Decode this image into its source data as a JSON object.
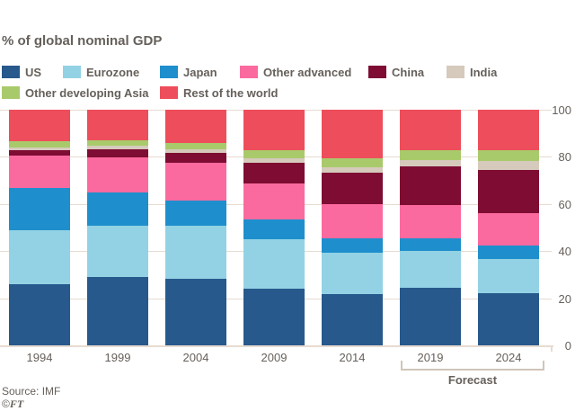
{
  "title": "% of global nominal GDP",
  "footer": {
    "source": "Source: IMF",
    "copyright_symbol": "©",
    "copyright_brand": "FT"
  },
  "colors": {
    "background": "#ffffff",
    "text": "#66605b",
    "gridline": "#e7dbd0",
    "forecast_bracket": "#d0c5b9"
  },
  "chart_data": {
    "type": "bar",
    "stacked": true,
    "title": "% of global nominal GDP",
    "xlabel": "",
    "ylabel": "% of global nominal GDP",
    "ylim": [
      0,
      100
    ],
    "yticks": [
      0,
      20,
      40,
      60,
      80,
      100
    ],
    "yaxis_side": "right",
    "grid": true,
    "legend_position": "top",
    "categories": [
      "1994",
      "1999",
      "2004",
      "2009",
      "2014",
      "2019",
      "2024"
    ],
    "series": [
      {
        "name": "US",
        "color": "#27598c",
        "values": [
          26.0,
          29.1,
          28.2,
          24.0,
          21.9,
          24.6,
          22.1
        ]
      },
      {
        "name": "Eurozone",
        "color": "#93d2e4",
        "values": [
          23.0,
          21.6,
          22.5,
          21.2,
          17.5,
          15.3,
          14.6
        ]
      },
      {
        "name": "Japan",
        "color": "#1e8fcc",
        "values": [
          17.9,
          14.0,
          10.6,
          8.4,
          6.0,
          5.7,
          5.7
        ]
      },
      {
        "name": "Other advanced",
        "color": "#fb6a9f",
        "values": [
          13.5,
          14.9,
          16.0,
          15.2,
          14.6,
          14.0,
          13.8
        ]
      },
      {
        "name": "China",
        "color": "#7e0c33",
        "values": [
          2.4,
          3.5,
          4.4,
          8.5,
          13.3,
          16.2,
          18.4
        ]
      },
      {
        "name": "India",
        "color": "#d6cabc",
        "values": [
          1.3,
          1.5,
          1.5,
          2.2,
          2.3,
          2.9,
          3.5
        ]
      },
      {
        "name": "Other developing Asia",
        "color": "#a9ca6b",
        "values": [
          2.6,
          2.4,
          2.8,
          3.2,
          3.6,
          4.0,
          4.6
        ]
      },
      {
        "name": "Rest of the world",
        "color": "#ee4d5b",
        "values": [
          13.3,
          13.0,
          14.0,
          17.3,
          20.8,
          17.3,
          17.3
        ]
      }
    ],
    "forecast_categories": [
      "2019",
      "2024"
    ],
    "forecast_label": "Forecast"
  }
}
